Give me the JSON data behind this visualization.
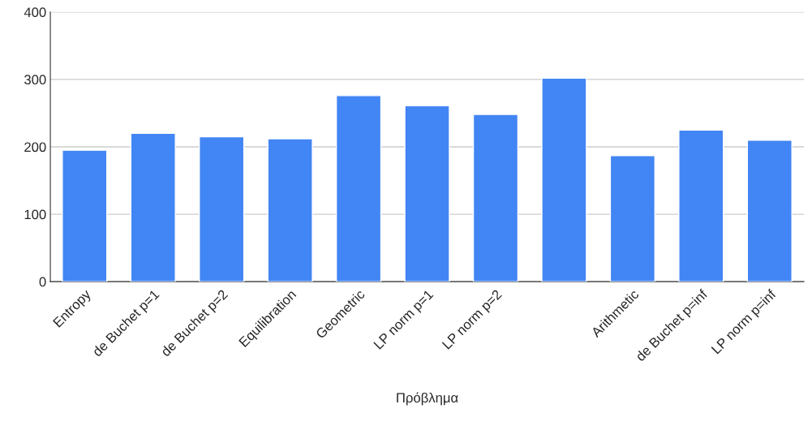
{
  "chart_data": {
    "type": "bar",
    "xlabel": "Πρόβλημα",
    "categories": [
      "Entropy",
      "de Buchet p=1",
      "de Buchet p=2",
      "Equilibration",
      "Geometric",
      "LP norm p=1",
      "LP norm p=2",
      null,
      "Arithmetic",
      "de Buchet p=inf",
      "LP norm p=inf"
    ],
    "values": [
      195,
      220,
      215,
      212,
      276,
      261,
      248,
      302,
      187,
      225,
      210
    ],
    "color": "#4285f4",
    "ylim": [
      0,
      400
    ],
    "yticks": [
      0,
      100,
      200,
      300,
      400
    ],
    "grid": "y",
    "legend": false
  }
}
